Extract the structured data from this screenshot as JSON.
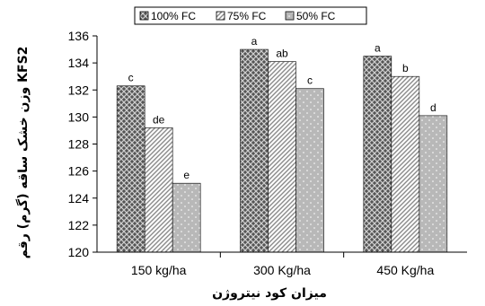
{
  "chart_data": {
    "type": "bar",
    "title": "",
    "xlabel": "میزان کود نیتروژن",
    "ylabel": "وزن خشک ساقه (گرم) رقم KFS2",
    "ylim": [
      120,
      136
    ],
    "yticks": [
      120,
      122,
      124,
      126,
      128,
      130,
      132,
      134,
      136
    ],
    "categories": [
      "150 kg/ha",
      "300 Kg/ha",
      "450 Kg/ha"
    ],
    "legend_position": "top",
    "grid": false,
    "series": [
      {
        "name": "100% FC",
        "values": [
          132.3,
          135.0,
          134.5
        ],
        "labels": [
          "c",
          "a",
          "a"
        ],
        "pattern": "crosshatch",
        "color": "#6e6e6e"
      },
      {
        "name": "75% FC",
        "values": [
          129.2,
          134.1,
          133.0
        ],
        "labels": [
          "de",
          "ab",
          "b"
        ],
        "pattern": "diagonal",
        "color": "#bdbdbd"
      },
      {
        "name": "50% FC",
        "values": [
          125.1,
          132.1,
          130.1
        ],
        "labels": [
          "e",
          "c",
          "d"
        ],
        "pattern": "dotted",
        "color": "#b8b8b8"
      }
    ]
  }
}
